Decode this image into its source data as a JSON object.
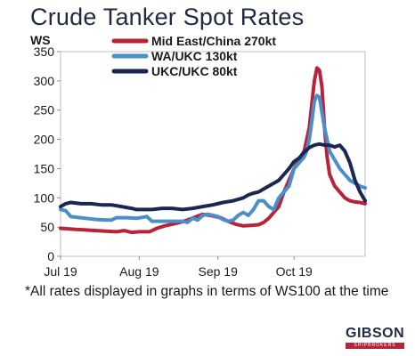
{
  "chart_data": {
    "type": "line",
    "title": "Crude Tanker Spot Rates",
    "ylabel": "WS",
    "xlabel": "",
    "ylim": [
      0,
      350
    ],
    "yticks": [
      0,
      50,
      100,
      150,
      200,
      250,
      300,
      350
    ],
    "xlim": [
      0,
      120
    ],
    "xticks": [
      {
        "label": "Jul 19",
        "x": 0
      },
      {
        "label": "Aug 19",
        "x": 31
      },
      {
        "label": "Sep 19",
        "x": 62
      },
      {
        "label": "Oct 19",
        "x": 92
      }
    ],
    "grid": false,
    "legend_position": "top",
    "series": [
      {
        "name": "Mid East/China 270kt",
        "color": "#b8233a",
        "x": [
          0,
          3,
          6,
          10,
          14,
          18,
          22,
          25,
          28,
          31,
          35,
          38,
          41,
          44,
          47,
          50,
          53,
          56,
          60,
          63,
          66,
          69,
          72,
          75,
          78,
          80,
          82,
          84,
          86,
          88,
          90,
          92,
          94,
          96,
          98,
          99,
          100,
          101,
          102,
          103,
          104,
          105,
          106,
          108,
          110,
          112,
          114,
          116,
          118,
          120
        ],
        "y": [
          48,
          47,
          46,
          45,
          44,
          43,
          42,
          44,
          41,
          42,
          42,
          48,
          52,
          55,
          58,
          62,
          67,
          72,
          69,
          66,
          60,
          55,
          52,
          53,
          54,
          58,
          65,
          75,
          85,
          110,
          130,
          150,
          165,
          180,
          220,
          260,
          300,
          322,
          318,
          290,
          220,
          170,
          140,
          120,
          110,
          100,
          95,
          93,
          92,
          90
        ]
      },
      {
        "name": "WA/UKC 130kt",
        "color": "#4a8fc9",
        "x": [
          0,
          2,
          4,
          6,
          10,
          14,
          18,
          20,
          22,
          26,
          30,
          34,
          36,
          40,
          44,
          48,
          50,
          52,
          54,
          56,
          58,
          60,
          62,
          64,
          66,
          68,
          70,
          72,
          74,
          76,
          78,
          80,
          82,
          84,
          86,
          88,
          90,
          92,
          94,
          96,
          97,
          98,
          99,
          100,
          101,
          102,
          104,
          106,
          108,
          110,
          112,
          114,
          116,
          118,
          120
        ],
        "y": [
          80,
          78,
          68,
          67,
          65,
          63,
          62,
          62,
          66,
          66,
          65,
          68,
          60,
          60,
          60,
          60,
          58,
          65,
          62,
          70,
          72,
          70,
          68,
          63,
          60,
          62,
          70,
          75,
          70,
          80,
          95,
          95,
          85,
          80,
          100,
          110,
          120,
          150,
          160,
          170,
          180,
          200,
          230,
          265,
          275,
          272,
          220,
          180,
          165,
          150,
          140,
          130,
          125,
          120,
          117
        ]
      },
      {
        "name": "UKC/UKC 80kt",
        "color": "#1b2750",
        "x": [
          0,
          2,
          4,
          8,
          12,
          16,
          20,
          24,
          28,
          30,
          32,
          36,
          40,
          44,
          48,
          52,
          56,
          60,
          64,
          68,
          72,
          74,
          76,
          78,
          80,
          82,
          84,
          86,
          88,
          90,
          92,
          94,
          96,
          98,
          100,
          102,
          104,
          106,
          108,
          110,
          112,
          114,
          116,
          118,
          120
        ],
        "y": [
          85,
          90,
          92,
          90,
          90,
          88,
          88,
          85,
          82,
          80,
          80,
          80,
          82,
          82,
          80,
          82,
          85,
          88,
          92,
          95,
          100,
          105,
          108,
          110,
          115,
          120,
          125,
          130,
          140,
          150,
          162,
          168,
          178,
          186,
          190,
          192,
          190,
          190,
          187,
          190,
          180,
          160,
          130,
          110,
          95
        ]
      }
    ]
  },
  "footnote": "*All rates displayed in graphs in terms of WS100 at the time",
  "logo": {
    "name": "GIBSON",
    "subtitle": "SHIPBROKERS",
    "color": "#b8233a"
  }
}
